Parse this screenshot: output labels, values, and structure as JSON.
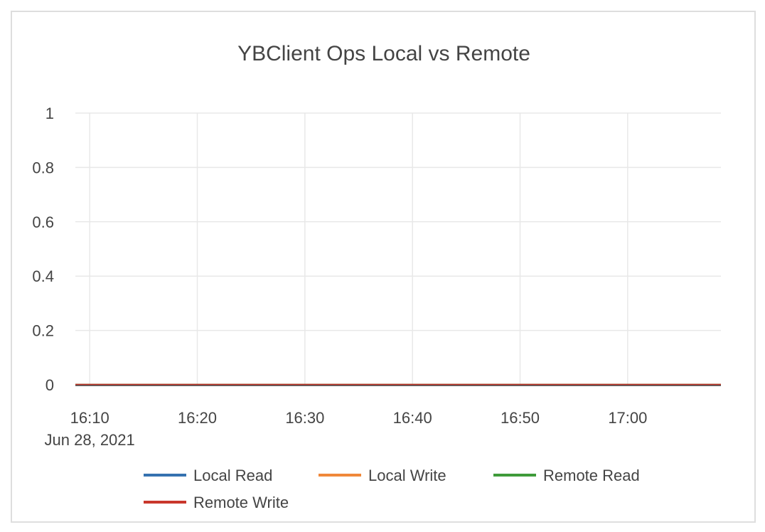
{
  "chart_data": {
    "type": "line",
    "title": "YBClient Ops Local vs Remote",
    "xlabel": "",
    "ylabel": "",
    "x_range": [
      "2021-06-28 16:08:40",
      "2021-06-28 17:08:40"
    ],
    "ylim": [
      0,
      1
    ],
    "y_ticks": [
      "0",
      "0.2",
      "0.4",
      "0.6",
      "0.8",
      "1"
    ],
    "x_ticks": [
      {
        "time": "2021-06-28 16:10",
        "label": "16:10",
        "sublabel": "Jun 28, 2021"
      },
      {
        "time": "2021-06-28 16:20",
        "label": "16:20"
      },
      {
        "time": "2021-06-28 16:30",
        "label": "16:30"
      },
      {
        "time": "2021-06-28 16:40",
        "label": "16:40"
      },
      {
        "time": "2021-06-28 16:50",
        "label": "16:50"
      },
      {
        "time": "2021-06-28 17:00",
        "label": "17:00"
      }
    ],
    "grid": true,
    "legend_position": "bottom",
    "series": [
      {
        "name": "Local Read",
        "color": "#3572b0",
        "x": [
          "2021-06-28 16:08:40",
          "2021-06-28 17:08:40"
        ],
        "values": [
          0,
          0
        ]
      },
      {
        "name": "Local Write",
        "color": "#f0883a",
        "x": [
          "2021-06-28 16:08:40",
          "2021-06-28 17:08:40"
        ],
        "values": [
          0,
          0
        ]
      },
      {
        "name": "Remote Read",
        "color": "#3f9b3a",
        "x": [
          "2021-06-28 16:08:40",
          "2021-06-28 17:08:40"
        ],
        "values": [
          0,
          0
        ]
      },
      {
        "name": "Remote Write",
        "color": "#c9372c",
        "x": [
          "2021-06-28 16:08:40",
          "2021-06-28 17:08:40"
        ],
        "values": [
          0,
          0
        ]
      }
    ]
  }
}
